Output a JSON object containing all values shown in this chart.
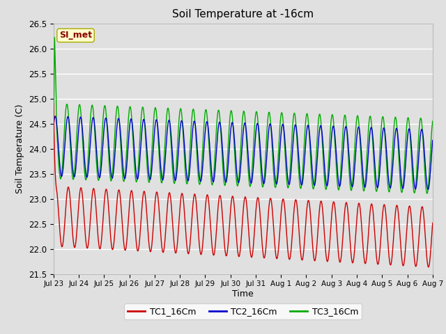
{
  "title": "Soil Temperature at -16cm",
  "xlabel": "Time",
  "ylabel": "Soil Temperature (C)",
  "ylim": [
    21.5,
    26.5
  ],
  "background_color": "#e0e0e0",
  "plot_bg_color": "#e0e0e0",
  "grid_color": "#ffffff",
  "tc1_color": "#cc0000",
  "tc2_color": "#0000cc",
  "tc3_color": "#00aa00",
  "annotation_text": "SI_met",
  "annotation_bg": "#ffffcc",
  "annotation_border": "#aaaa00",
  "annotation_text_color": "#880000",
  "legend_labels": [
    "TC1_16Cm",
    "TC2_16Cm",
    "TC3_16Cm"
  ],
  "x_tick_labels": [
    "Jul 23",
    "Jul 24",
    "Jul 25",
    "Jul 26",
    "Jul 27",
    "Jul 28",
    "Jul 29",
    "Jul 30",
    "Jul 31",
    "Aug 1",
    "Aug 2",
    "Aug 3",
    "Aug 4",
    "Aug 5",
    "Aug 6",
    "Aug 7"
  ],
  "n_points": 1440,
  "duration_days": 15
}
